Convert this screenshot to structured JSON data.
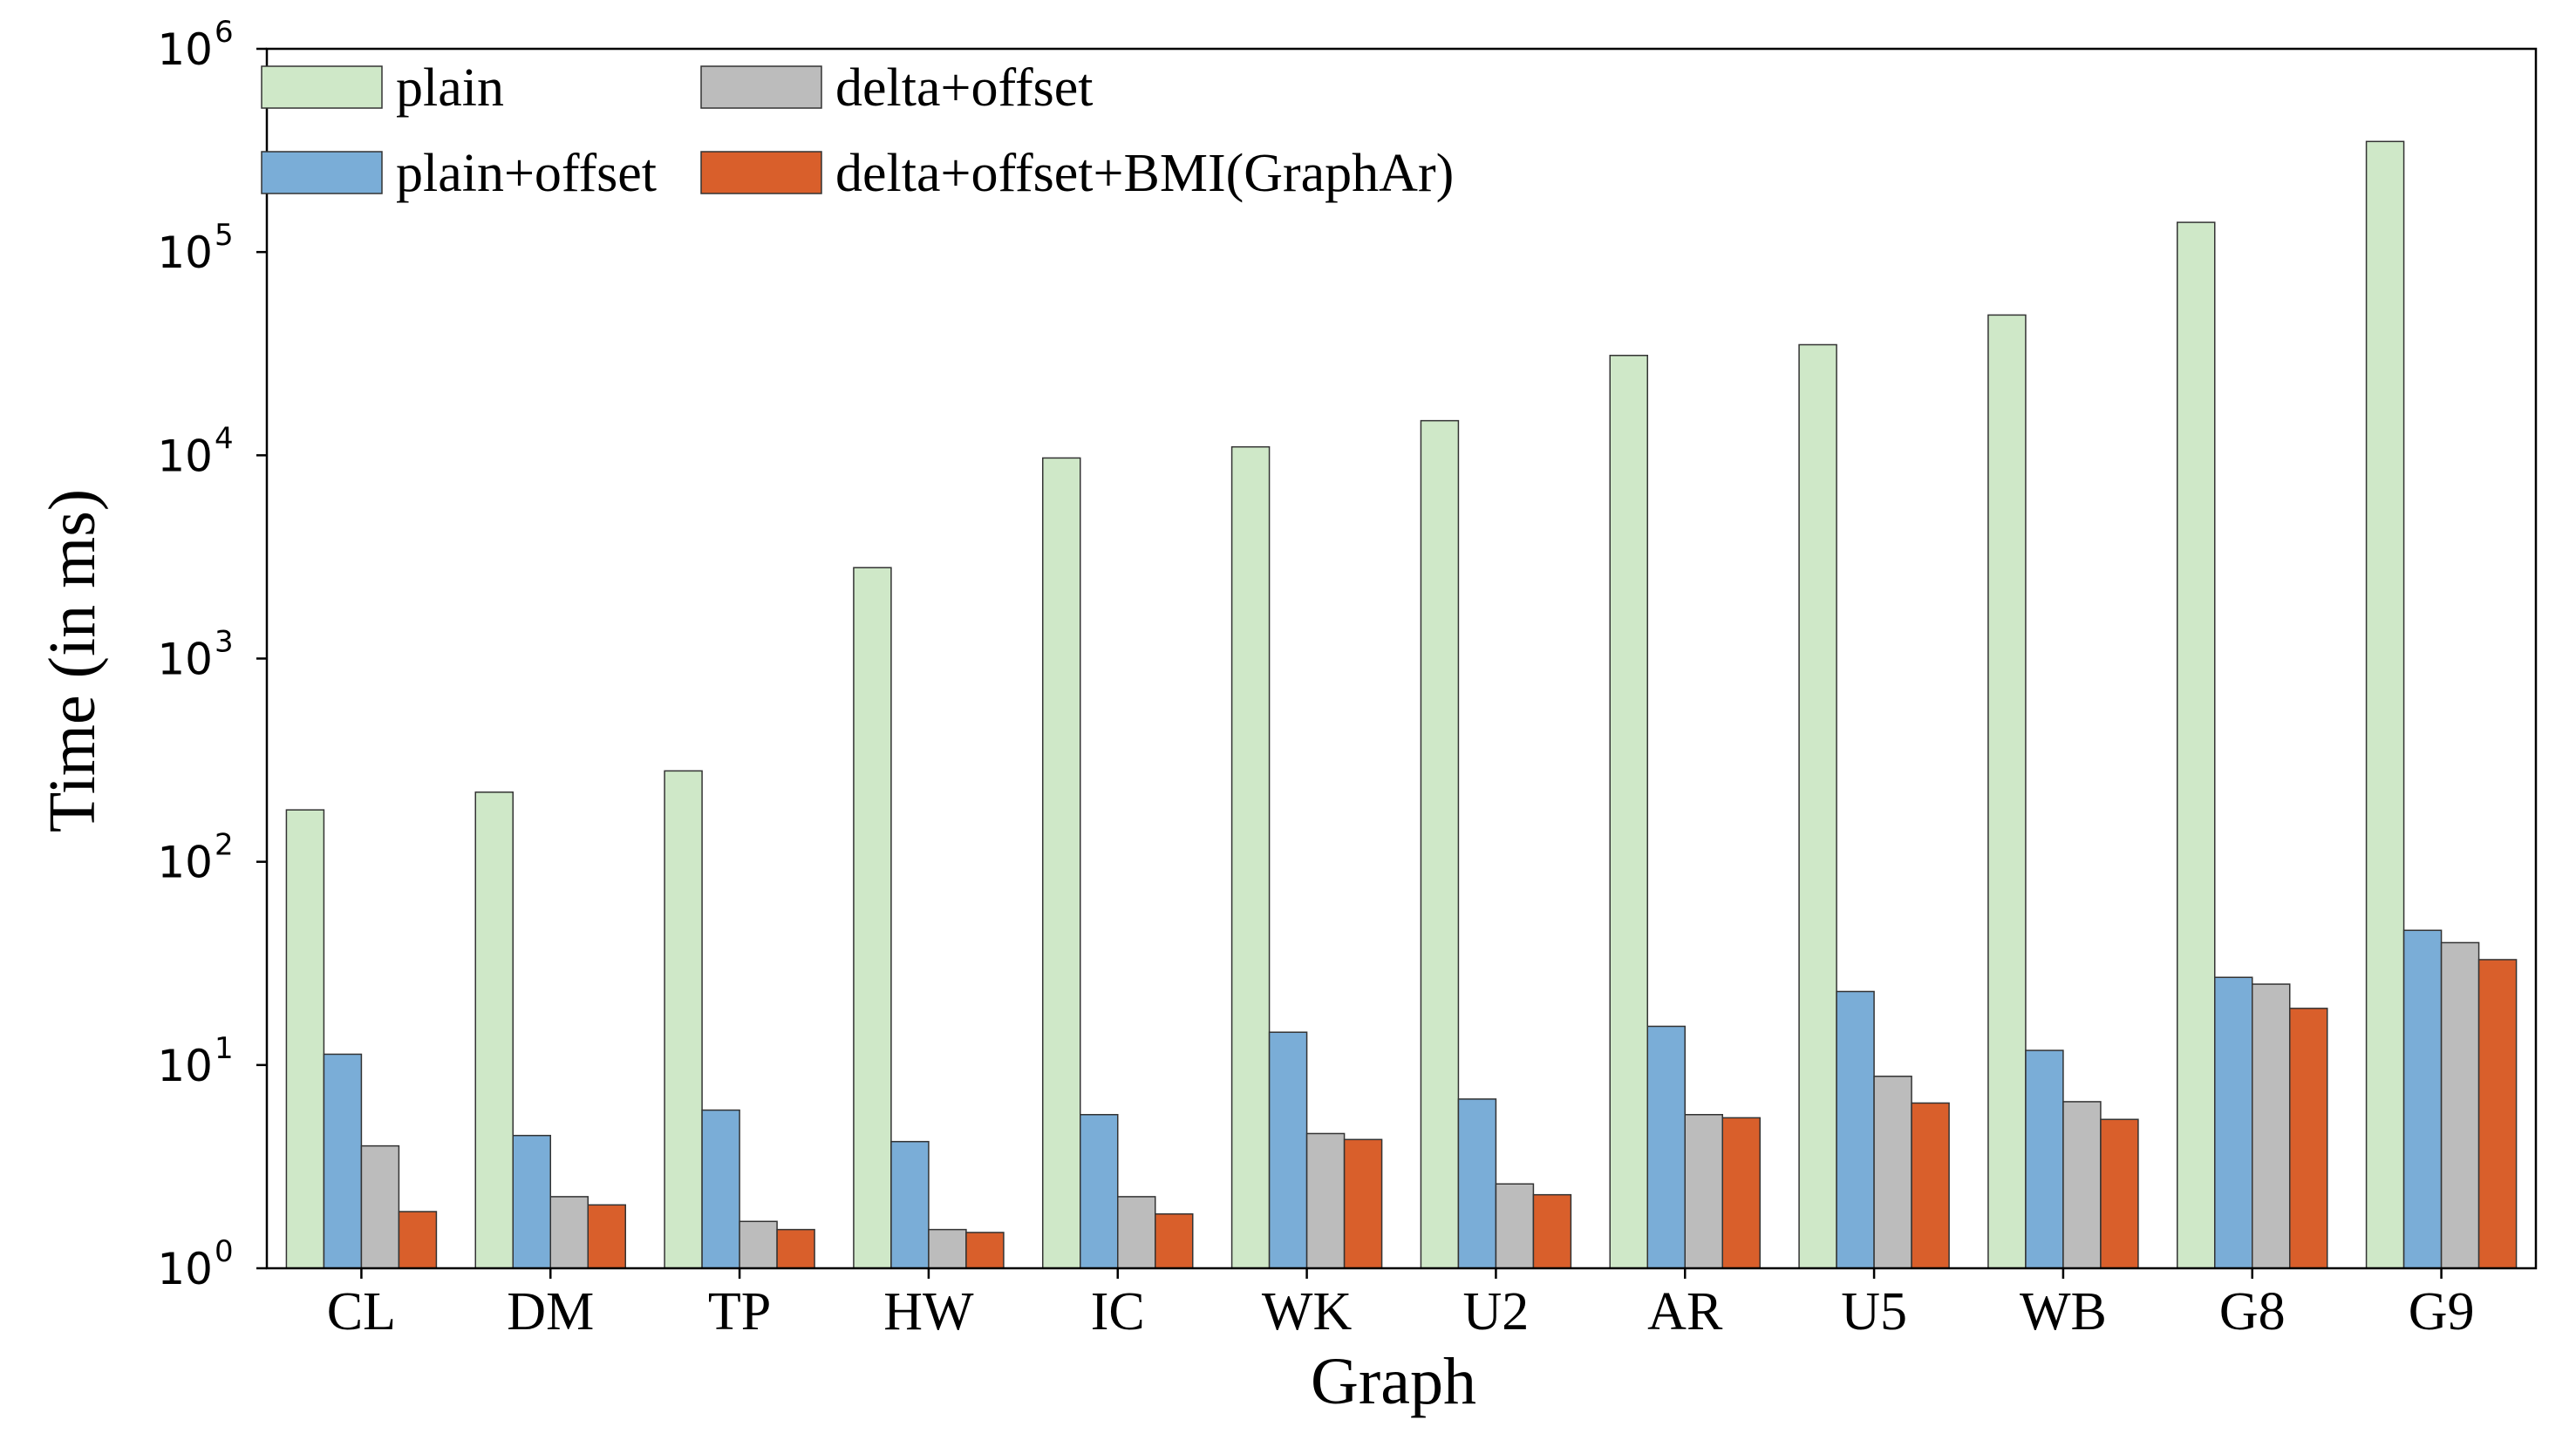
{
  "chart_data": {
    "type": "bar",
    "xlabel": "Graph",
    "ylabel": "Time (in ms)",
    "yscale": "log",
    "ylim": [
      1,
      1000000
    ],
    "yticks": [
      {
        "value": 1,
        "base": "10",
        "exp": "0"
      },
      {
        "value": 10,
        "base": "10",
        "exp": "1"
      },
      {
        "value": 100,
        "base": "10",
        "exp": "2"
      },
      {
        "value": 1000,
        "base": "10",
        "exp": "3"
      },
      {
        "value": 10000,
        "base": "10",
        "exp": "4"
      },
      {
        "value": 100000,
        "base": "10",
        "exp": "5"
      },
      {
        "value": 1000000,
        "base": "10",
        "exp": "6"
      }
    ],
    "categories": [
      "CL",
      "DM",
      "TP",
      "HW",
      "IC",
      "WK",
      "U2",
      "AR",
      "U5",
      "WB",
      "G8",
      "G9"
    ],
    "series": [
      {
        "name": "plain",
        "color": "#cfe8c8",
        "values": [
          180,
          220,
          280,
          2800,
          9700,
          11000,
          14800,
          31000,
          35000,
          49000,
          140000,
          350000
        ]
      },
      {
        "name": "plain+offset",
        "color": "#7aadd7",
        "values": [
          11.3,
          4.5,
          6.0,
          4.2,
          5.7,
          14.5,
          6.8,
          15.5,
          23.0,
          11.8,
          27.0,
          46.0
        ]
      },
      {
        "name": "delta+offset",
        "color": "#bcbcbc",
        "values": [
          4.0,
          2.25,
          1.7,
          1.55,
          2.25,
          4.6,
          2.6,
          5.7,
          8.8,
          6.6,
          25.0,
          40.0
        ]
      },
      {
        "name": "delta+offset+BMI(GraphAr)",
        "color": "#d95f2b",
        "values": [
          1.9,
          2.05,
          1.55,
          1.5,
          1.85,
          4.3,
          2.3,
          5.5,
          6.5,
          5.4,
          19.0,
          33.0
        ]
      }
    ],
    "legend": {
      "placement": "top-left",
      "columns": 2
    },
    "grid": false
  }
}
